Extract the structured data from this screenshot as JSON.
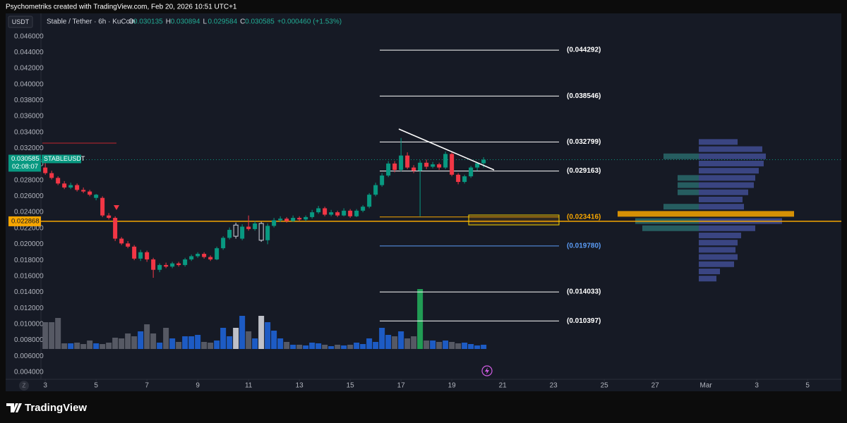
{
  "header": "Psychometriks created with TradingView.com, Feb 20, 2026 10:51 UTC+1",
  "footer_logo": "TradingView",
  "chart_data": {
    "type": "candlestick",
    "currency": "USDT",
    "title": "Stable / Tether · 6h · KuCoin",
    "ohlc_legend": [
      {
        "key": "O",
        "text": "0.030135"
      },
      {
        "key": "H",
        "text": "0.030894"
      },
      {
        "key": "L",
        "text": "0.029584"
      },
      {
        "key": "C",
        "text": "0.030585"
      },
      {
        "key": "",
        "text": "+0.000460 (+1.53%)"
      }
    ],
    "symbol": "STABLEUSDT",
    "countdown": "02:08:07",
    "last_price": {
      "value": 0.030585,
      "label": "0.030585"
    },
    "alert_price": {
      "value": 0.022868,
      "label": "0.022868"
    },
    "up_color": "#089981",
    "down_color": "#f23645",
    "grid": false,
    "ylim": [
      0.0031,
      0.0488
    ],
    "yticks": [
      {
        "value": 0.046,
        "label": "0.046000"
      },
      {
        "value": 0.044,
        "label": "0.044000"
      },
      {
        "value": 0.042,
        "label": "0.042000"
      },
      {
        "value": 0.04,
        "label": "0.040000"
      },
      {
        "value": 0.038,
        "label": "0.038000"
      },
      {
        "value": 0.036,
        "label": "0.036000"
      },
      {
        "value": 0.034,
        "label": "0.034000"
      },
      {
        "value": 0.032,
        "label": "0.032000"
      },
      {
        "value": 0.03,
        "label": "0.030000"
      },
      {
        "value": 0.028,
        "label": "0.028000"
      },
      {
        "value": 0.026,
        "label": "0.026000"
      },
      {
        "value": 0.024,
        "label": "0.024000"
      },
      {
        "value": 0.022,
        "label": "0.022000"
      },
      {
        "value": 0.02,
        "label": "0.020000"
      },
      {
        "value": 0.018,
        "label": "0.018000"
      },
      {
        "value": 0.016,
        "label": "0.016000"
      },
      {
        "value": 0.014,
        "label": "0.014000"
      },
      {
        "value": 0.012,
        "label": "0.012000"
      },
      {
        "value": 0.01,
        "label": "0.010000"
      },
      {
        "value": 0.008,
        "label": "0.008000"
      },
      {
        "value": 0.006,
        "label": "0.006000"
      },
      {
        "value": 0.004,
        "label": "0.004000"
      }
    ],
    "xlim": [
      1.44,
      34.33
    ],
    "xticks": [
      3,
      5,
      7,
      9,
      11,
      13,
      15,
      17,
      19,
      21,
      23,
      25,
      27,
      {
        "value": 29,
        "label": "Mar"
      },
      {
        "value": 31,
        "label": "3"
      },
      {
        "value": 33,
        "label": "5"
      }
    ],
    "x": [
      3,
      3.25,
      3.5,
      3.75,
      4,
      4.25,
      4.5,
      4.75,
      5,
      5.25,
      5.5,
      5.75,
      6,
      6.25,
      6.5,
      6.75,
      7,
      7.25,
      7.5,
      7.75,
      8,
      8.25,
      8.5,
      8.75,
      9,
      9.25,
      9.5,
      9.75,
      10,
      10.25,
      10.5,
      10.75,
      11,
      11.25,
      11.5,
      11.75,
      12,
      12.25,
      12.5,
      12.75,
      13,
      13.25,
      13.5,
      13.75,
      14,
      14.25,
      14.5,
      14.75,
      15,
      15.25,
      15.5,
      15.75,
      16,
      16.25,
      16.5,
      16.75,
      17,
      17.25,
      17.5,
      17.75,
      18,
      18.25,
      18.5,
      18.75,
      19,
      19.25,
      19.5,
      19.75,
      20,
      20.25
    ],
    "candles": [
      [
        0.0296,
        0.0302,
        0.0287,
        0.0289
      ],
      [
        0.0289,
        0.0292,
        0.0281,
        0.0283
      ],
      [
        0.0283,
        0.0285,
        0.0274,
        0.0276
      ],
      [
        0.0276,
        0.0279,
        0.0269,
        0.0271
      ],
      [
        0.0271,
        0.0277,
        0.0269,
        0.0274
      ],
      [
        0.0274,
        0.0276,
        0.0266,
        0.0268
      ],
      [
        0.0268,
        0.0271,
        0.0264,
        0.0266
      ],
      [
        0.0266,
        0.0268,
        0.026,
        0.0262
      ],
      [
        0.0258,
        0.0263,
        0.0255,
        0.0262
      ],
      [
        0.0258,
        0.026,
        0.0234,
        0.0236
      ],
      [
        0.0236,
        0.0239,
        0.0231,
        0.0233
      ],
      [
        0.0233,
        0.0235,
        0.0204,
        0.0207
      ],
      [
        0.0207,
        0.0209,
        0.0199,
        0.0201
      ],
      [
        0.0201,
        0.0204,
        0.0195,
        0.0197
      ],
      [
        0.0197,
        0.0199,
        0.018,
        0.0182
      ],
      [
        0.0182,
        0.0193,
        0.0179,
        0.019
      ],
      [
        0.019,
        0.0192,
        0.0178,
        0.0181
      ],
      [
        0.0181,
        0.0183,
        0.0158,
        0.0168
      ],
      [
        0.0168,
        0.0176,
        0.0165,
        0.0174
      ],
      [
        0.0174,
        0.0177,
        0.017,
        0.0172
      ],
      [
        0.0172,
        0.0178,
        0.017,
        0.0176
      ],
      [
        0.0176,
        0.0178,
        0.0172,
        0.0174
      ],
      [
        0.0174,
        0.0183,
        0.0172,
        0.0181
      ],
      [
        0.0181,
        0.0187,
        0.0179,
        0.0185
      ],
      [
        0.0185,
        0.019,
        0.0183,
        0.0188
      ],
      [
        0.0188,
        0.019,
        0.0182,
        0.0184
      ],
      [
        0.0184,
        0.0186,
        0.0179,
        0.0181
      ],
      [
        0.0181,
        0.0197,
        0.018,
        0.0195
      ],
      [
        0.0195,
        0.021,
        0.0193,
        0.0208
      ],
      [
        0.0208,
        0.0221,
        0.0206,
        0.0218
      ],
      [
        0.021,
        0.0227,
        0.0207,
        0.0224
      ],
      [
        0.0207,
        0.0225,
        0.0205,
        0.0222
      ],
      [
        0.0222,
        0.0236,
        0.0217,
        0.0219
      ],
      [
        0.0219,
        0.0229,
        0.0217,
        0.0226
      ],
      [
        0.0226,
        0.0228,
        0.0203,
        0.0205
      ],
      [
        0.0205,
        0.0226,
        0.02,
        0.0223
      ],
      [
        0.0223,
        0.0233,
        0.0221,
        0.023
      ],
      [
        0.023,
        0.0235,
        0.0228,
        0.0232
      ],
      [
        0.0232,
        0.0234,
        0.0227,
        0.0229
      ],
      [
        0.0229,
        0.0236,
        0.0228,
        0.0233
      ],
      [
        0.0233,
        0.0235,
        0.0229,
        0.0231
      ],
      [
        0.0231,
        0.0236,
        0.0229,
        0.0234
      ],
      [
        0.0234,
        0.0243,
        0.0232,
        0.024
      ],
      [
        0.024,
        0.0248,
        0.0238,
        0.0245
      ],
      [
        0.0245,
        0.0247,
        0.0235,
        0.0237
      ],
      [
        0.0237,
        0.0243,
        0.0235,
        0.024
      ],
      [
        0.024,
        0.0242,
        0.0234,
        0.0236
      ],
      [
        0.0236,
        0.0245,
        0.0235,
        0.0242
      ],
      [
        0.0242,
        0.0244,
        0.0233,
        0.0235
      ],
      [
        0.0235,
        0.0244,
        0.0234,
        0.0242
      ],
      [
        0.0242,
        0.0249,
        0.024,
        0.0247
      ],
      [
        0.0247,
        0.0264,
        0.0245,
        0.0262
      ],
      [
        0.0262,
        0.0277,
        0.026,
        0.0274
      ],
      [
        0.0274,
        0.0289,
        0.0272,
        0.0286
      ],
      [
        0.0286,
        0.0304,
        0.0284,
        0.0301
      ],
      [
        0.0301,
        0.0304,
        0.029,
        0.0293
      ],
      [
        0.0293,
        0.0333,
        0.0291,
        0.0311
      ],
      [
        0.0311,
        0.0315,
        0.0294,
        0.0296
      ],
      [
        0.0296,
        0.0299,
        0.0289,
        0.0292
      ],
      [
        0.0292,
        0.0305,
        0.0235,
        0.0302
      ],
      [
        0.0302,
        0.0306,
        0.0294,
        0.0297
      ],
      [
        0.0297,
        0.0303,
        0.0295,
        0.03
      ],
      [
        0.03,
        0.0302,
        0.0293,
        0.0296
      ],
      [
        0.0296,
        0.0316,
        0.0294,
        0.0313
      ],
      [
        0.0313,
        0.0315,
        0.0285,
        0.0287
      ],
      [
        0.0287,
        0.0289,
        0.0275,
        0.0278
      ],
      [
        0.0278,
        0.0287,
        0.0276,
        0.0285
      ],
      [
        0.0285,
        0.0298,
        0.0283,
        0.0296
      ],
      [
        0.0296,
        0.0299,
        0.0292,
        0.030135
      ],
      [
        0.030135,
        0.030894,
        0.029584,
        0.030585
      ]
    ],
    "hollow_candles": [
      30,
      34
    ],
    "hollow_color": "#d1d4dc",
    "volume": {
      "ylim": [
        0,
        100
      ],
      "up_color": "#1e63d6",
      "down_color": "#5d606b",
      "values": [
        38,
        38,
        44,
        8,
        8,
        9,
        7,
        12,
        8,
        7,
        9,
        16,
        15,
        22,
        18,
        25,
        35,
        22,
        9,
        30,
        15,
        10,
        18,
        18,
        20,
        10,
        9,
        12,
        30,
        18,
        30,
        47,
        25,
        15,
        47,
        38,
        26,
        15,
        10,
        6,
        6,
        5,
        9,
        8,
        6,
        4,
        6,
        5,
        6,
        9,
        7,
        15,
        10,
        30,
        20,
        18,
        25,
        15,
        18,
        85,
        12,
        12,
        10,
        12,
        10,
        8,
        9,
        7,
        5,
        6
      ],
      "highlights": [
        {
          "index": 30,
          "color": "#d1d4dc"
        },
        {
          "index": 34,
          "color": "#d1d4dc"
        },
        {
          "index": 59,
          "color": "#22ab5a"
        }
      ]
    },
    "levels": [
      {
        "value": 0.044292,
        "label": "(0.044292)",
        "color": "#ffffff"
      },
      {
        "value": 0.038546,
        "label": "(0.038546)",
        "color": "#ffffff"
      },
      {
        "value": 0.032799,
        "label": "(0.032799)",
        "color": "#ffffff"
      },
      {
        "value": 0.029163,
        "label": "(0.029163)",
        "color": "#ffffff"
      },
      {
        "value": 0.023416,
        "label": "(0.023416)",
        "color": "#f7a600"
      },
      {
        "value": 0.01978,
        "label": "(0.019780)",
        "color": "#5b9cf6"
      },
      {
        "value": 0.014033,
        "label": "(0.014033)",
        "color": "#ffffff"
      },
      {
        "value": 0.010397,
        "label": "(0.010397)",
        "color": "#ffffff"
      }
    ],
    "volume_profile": {
      "prices": [
        0.0328,
        0.0319,
        0.031,
        0.0301,
        0.0292,
        0.0283,
        0.0274,
        0.0265,
        0.0256,
        0.0247,
        0.0238,
        0.0229,
        0.022,
        0.0211,
        0.0202,
        0.0193,
        0.0184,
        0.0175,
        0.0166,
        0.0157
      ],
      "left": [
        0,
        0,
        50,
        0,
        0,
        30,
        30,
        30,
        0,
        50,
        115,
        90,
        80,
        0,
        0,
        0,
        0,
        0,
        0,
        0
      ],
      "right": [
        55,
        90,
        95,
        92,
        85,
        80,
        78,
        70,
        62,
        64,
        135,
        118,
        80,
        60,
        55,
        52,
        55,
        50,
        30,
        25
      ],
      "left_color": "#2b6e6f",
      "right_color": "#44509a",
      "highlight_index": 10,
      "highlight_color": "#f7a600"
    }
  }
}
